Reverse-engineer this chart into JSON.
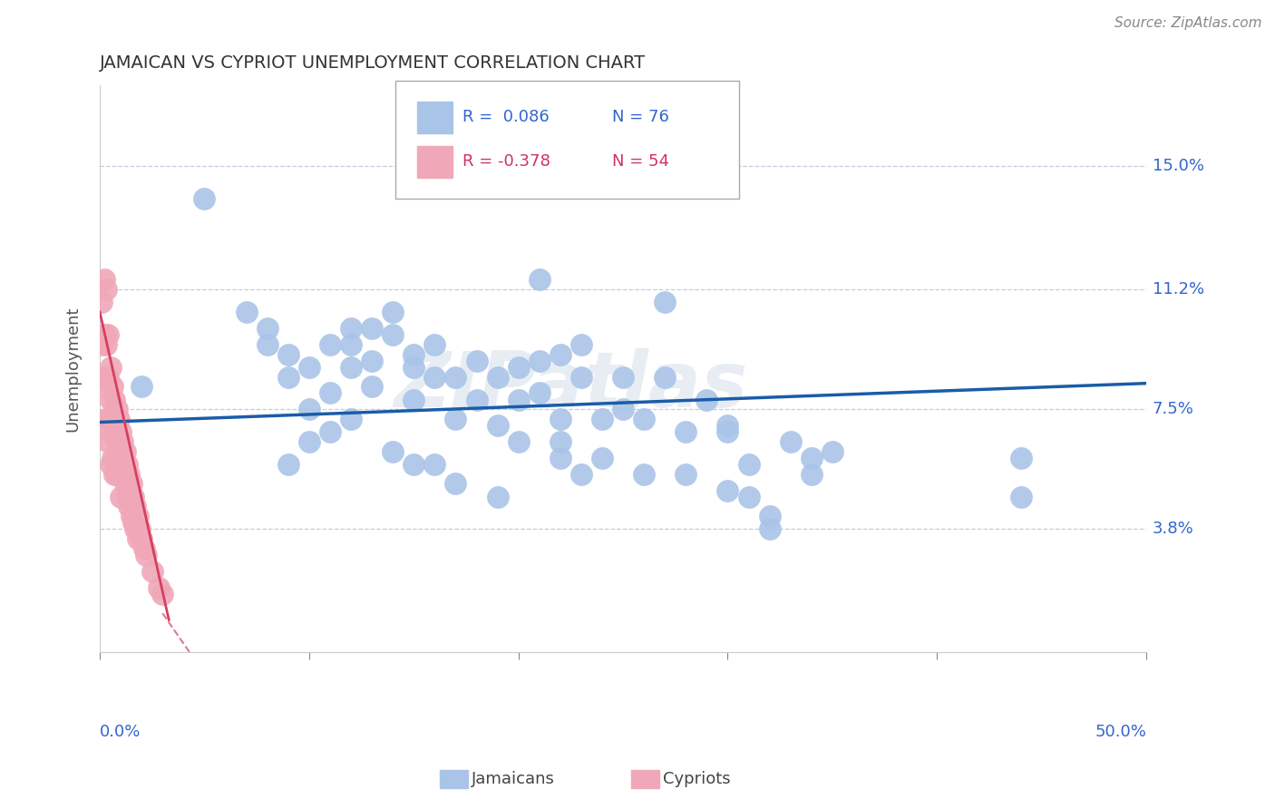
{
  "title": "JAMAICAN VS CYPRIOT UNEMPLOYMENT CORRELATION CHART",
  "source": "Source: ZipAtlas.com",
  "ylabel": "Unemployment",
  "ytick_labels": [
    "3.8%",
    "7.5%",
    "11.2%",
    "15.0%"
  ],
  "ytick_values": [
    0.038,
    0.075,
    0.112,
    0.15
  ],
  "xlim": [
    0.0,
    0.5
  ],
  "ylim": [
    0.0,
    0.175
  ],
  "legend_blue_r": "R =  0.086",
  "legend_blue_n": "N = 76",
  "legend_pink_r": "R = -0.378",
  "legend_pink_n": "N = 54",
  "legend_blue_label": "Jamaicans",
  "legend_pink_label": "Cypriots",
  "blue_scatter_color": "#aac4e8",
  "pink_scatter_color": "#f0a8b8",
  "blue_line_color": "#1a5ca8",
  "pink_line_color": "#d44060",
  "watermark": "ZIPatlas",
  "blue_line_x": [
    0.0,
    0.5
  ],
  "blue_line_y": [
    0.071,
    0.083
  ],
  "pink_line_x": [
    0.0,
    0.033
  ],
  "pink_line_y": [
    0.105,
    0.01
  ],
  "blue_points_x": [
    0.02,
    0.05,
    0.07,
    0.08,
    0.08,
    0.09,
    0.09,
    0.1,
    0.1,
    0.11,
    0.11,
    0.12,
    0.12,
    0.12,
    0.13,
    0.13,
    0.13,
    0.14,
    0.14,
    0.15,
    0.15,
    0.15,
    0.16,
    0.16,
    0.17,
    0.17,
    0.18,
    0.18,
    0.19,
    0.19,
    0.2,
    0.2,
    0.21,
    0.21,
    0.22,
    0.22,
    0.23,
    0.24,
    0.25,
    0.25,
    0.26,
    0.27,
    0.28,
    0.29,
    0.3,
    0.3,
    0.21,
    0.27,
    0.23,
    0.31,
    0.31,
    0.33,
    0.34,
    0.34,
    0.35,
    0.22,
    0.24,
    0.26,
    0.28,
    0.3,
    0.15,
    0.17,
    0.19,
    0.09,
    0.1,
    0.11,
    0.12,
    0.14,
    0.16,
    0.44,
    0.44,
    0.32,
    0.32,
    0.2,
    0.22,
    0.23
  ],
  "blue_points_y": [
    0.082,
    0.14,
    0.105,
    0.095,
    0.1,
    0.092,
    0.085,
    0.088,
    0.075,
    0.095,
    0.08,
    0.1,
    0.095,
    0.088,
    0.1,
    0.09,
    0.082,
    0.105,
    0.098,
    0.092,
    0.088,
    0.078,
    0.095,
    0.085,
    0.085,
    0.072,
    0.09,
    0.078,
    0.085,
    0.07,
    0.088,
    0.078,
    0.09,
    0.08,
    0.092,
    0.072,
    0.085,
    0.072,
    0.085,
    0.075,
    0.072,
    0.085,
    0.068,
    0.078,
    0.07,
    0.068,
    0.115,
    0.108,
    0.095,
    0.058,
    0.048,
    0.065,
    0.055,
    0.06,
    0.062,
    0.065,
    0.06,
    0.055,
    0.055,
    0.05,
    0.058,
    0.052,
    0.048,
    0.058,
    0.065,
    0.068,
    0.072,
    0.062,
    0.058,
    0.06,
    0.048,
    0.042,
    0.038,
    0.065,
    0.06,
    0.055
  ],
  "pink_points_x": [
    0.001,
    0.001,
    0.002,
    0.002,
    0.002,
    0.003,
    0.003,
    0.003,
    0.003,
    0.004,
    0.004,
    0.004,
    0.004,
    0.005,
    0.005,
    0.005,
    0.005,
    0.006,
    0.006,
    0.006,
    0.007,
    0.007,
    0.007,
    0.008,
    0.008,
    0.008,
    0.009,
    0.009,
    0.01,
    0.01,
    0.01,
    0.011,
    0.011,
    0.012,
    0.012,
    0.013,
    0.013,
    0.014,
    0.014,
    0.015,
    0.015,
    0.016,
    0.016,
    0.017,
    0.017,
    0.018,
    0.018,
    0.019,
    0.02,
    0.021,
    0.022,
    0.025,
    0.028,
    0.03
  ],
  "pink_points_y": [
    0.108,
    0.095,
    0.115,
    0.098,
    0.085,
    0.112,
    0.095,
    0.082,
    0.072,
    0.098,
    0.085,
    0.072,
    0.065,
    0.088,
    0.078,
    0.068,
    0.058,
    0.082,
    0.07,
    0.06,
    0.078,
    0.068,
    0.055,
    0.075,
    0.065,
    0.055,
    0.072,
    0.062,
    0.068,
    0.058,
    0.048,
    0.065,
    0.055,
    0.062,
    0.052,
    0.058,
    0.048,
    0.055,
    0.045,
    0.052,
    0.042,
    0.048,
    0.04,
    0.045,
    0.038,
    0.042,
    0.035,
    0.038,
    0.035,
    0.032,
    0.03,
    0.025,
    0.02,
    0.018
  ]
}
